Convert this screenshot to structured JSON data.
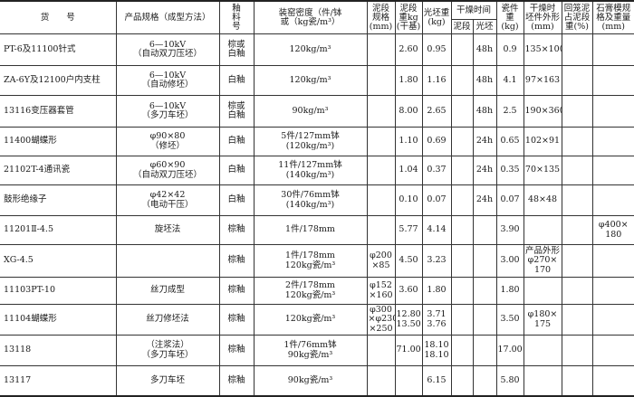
{
  "header": {
    "cols": [
      "货　　号",
      "产品规格（成型方法）",
      "釉\n料\n号",
      "装窑密度（件/钵\n或（kg瓷/m³）",
      "泥段\n规格\n(mm)",
      "泥段\n重kg\n(干基)",
      "光坯重\n(kg)",
      "干燥时间",
      "瓷件重\n(kg)",
      "干燥时\n坯件外形\n(mm)",
      "回笼泥\n占泥段\n重(%)",
      "石膏模规\n格及重量\n(mm)"
    ],
    "drying_sub": [
      "泥段",
      "光坯"
    ]
  },
  "rows": [
    [
      "PT-6及11100针式",
      "6—10kV\n（自动双刀压坯）",
      "棕或\n白釉",
      "120kg/m³",
      "",
      "2.60",
      "0.95",
      "",
      "48h",
      "0.9",
      "135×100",
      "",
      ""
    ],
    [
      "ZA-6Y及12100户内支柱",
      "6—10kV\n（自动修坯）",
      "白釉",
      "120kg/m³",
      "",
      "1.80",
      "1.16",
      "",
      "48h",
      "4.1",
      "97×163",
      "",
      ""
    ],
    [
      "13116变压器套管",
      "6—10kV\n（多刀车坯）",
      "棕或\n白釉",
      "90kg/m³",
      "",
      "8.00",
      "2.65",
      "",
      "48h",
      "2.5",
      "190×360",
      "",
      ""
    ],
    [
      "11400蝴蝶形",
      "φ90×80\n（修坯）",
      "白釉",
      "5件/127mm钵\n(120kg/m³)",
      "",
      "1.10",
      "0.69",
      "",
      "24h",
      "0.65",
      "102×91",
      "",
      ""
    ],
    [
      "21102T-4通讯瓷",
      "φ60×90\n（自动双刀压坯）",
      "白釉",
      "11件/127mm钵\n(140kg/m³)",
      "",
      "1.04",
      "0.37",
      "",
      "24h",
      "0.35",
      "70×135",
      "",
      ""
    ],
    [
      "鼓形绝缘子",
      "φ42×42\n（电动干压）",
      "白釉",
      "30件/76mm钵\n(140kg/m³)",
      "",
      "0.10",
      "0.07",
      "",
      "24h",
      "0.07",
      "48×48",
      "",
      ""
    ],
    [
      "11201Ⅱ-4.5",
      "旋坯法",
      "棕釉",
      "1件/178mm",
      "",
      "5.77",
      "4.14",
      "",
      "",
      "3.90",
      "",
      "",
      "φ400×\n180"
    ],
    [
      "XG-4.5",
      "",
      "棕釉",
      "1件/178mm\n120kg瓷/m³",
      "φ200\n×85",
      "4.50",
      "3.23",
      "",
      "",
      "3.00",
      "产品外形\nφ270×\n170",
      "",
      ""
    ],
    [
      "11103PT-10",
      "丝刀成型",
      "棕釉",
      "2件/178mm\n120kg瓷/m³",
      "φ152\n×160",
      "3.60",
      "1.80",
      "",
      "",
      "1.80",
      "",
      "",
      ""
    ],
    [
      "11104蝴蝶形",
      "丝刀修坯法",
      "棕釉",
      "120kg瓷/m³",
      "φ300\n×φ230\n×250",
      "12.80\n13.50",
      "3.71\n3.76",
      "",
      "",
      "3.50",
      "φ180×\n175",
      "",
      ""
    ],
    [
      "13118",
      "（注浆法）\n（多刀车坯）",
      "棕釉",
      "1件/76mm钵\n90kg瓷/m³",
      "",
      "71.00",
      "18.10\n18.10",
      "",
      "",
      "17.00",
      "",
      "",
      ""
    ],
    [
      "13117",
      "多刀车坯",
      "棕釉",
      "90kg瓷/m³",
      "",
      "",
      "6.15",
      "",
      "",
      "5.80",
      "",
      "",
      ""
    ]
  ]
}
